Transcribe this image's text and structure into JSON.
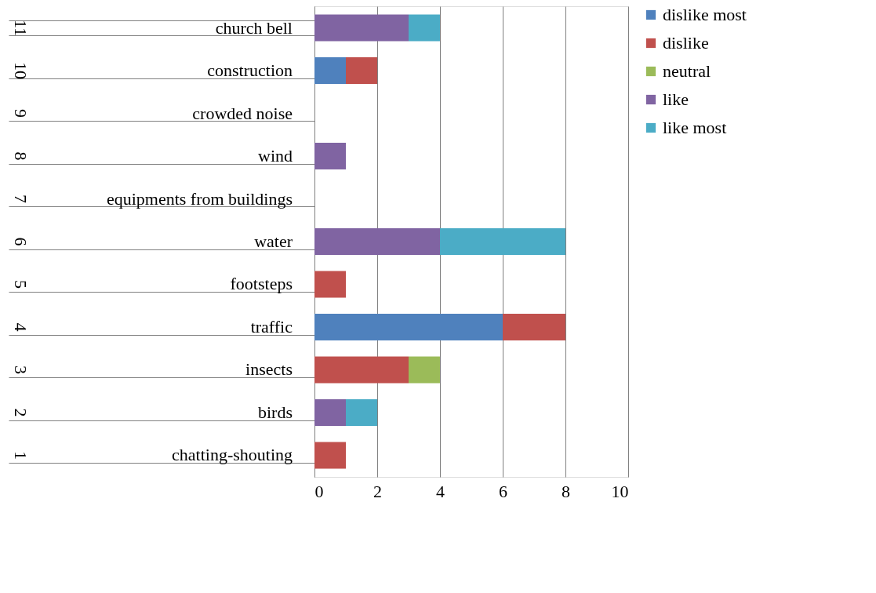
{
  "chart_data": {
    "type": "bar",
    "orientation": "horizontal",
    "stacked": true,
    "categories": [
      "church bell",
      "construction",
      "crowded noise",
      "wind",
      "equipments from buildings",
      "water",
      "footsteps",
      "traffic",
      "insects",
      "birds",
      "chatting-shouting"
    ],
    "y2_categories": [
      "11",
      "10",
      "9",
      "8",
      "7",
      "6",
      "5",
      "4",
      "3",
      "2",
      "1"
    ],
    "series": [
      {
        "name": "dislike most",
        "color": "#4f81bd",
        "values": [
          0,
          1,
          0,
          0,
          0,
          0,
          0,
          6,
          0,
          0,
          0
        ]
      },
      {
        "name": "dislike",
        "color": "#c0504d",
        "values": [
          0,
          1,
          0,
          0,
          0,
          0,
          1,
          2,
          3,
          0,
          1
        ]
      },
      {
        "name": "neutral",
        "color": "#9bbb59",
        "values": [
          0,
          0,
          0,
          0,
          0,
          0,
          0,
          0,
          1,
          0,
          0
        ]
      },
      {
        "name": "like",
        "color": "#8064a2",
        "values": [
          3,
          0,
          0,
          1,
          0,
          4,
          0,
          0,
          0,
          1,
          0
        ]
      },
      {
        "name": "like most",
        "color": "#4bacc6",
        "values": [
          1,
          0,
          0,
          0,
          0,
          4,
          0,
          0,
          0,
          1,
          0
        ]
      }
    ],
    "xlim": [
      0,
      10
    ],
    "xticks": [
      0,
      2,
      4,
      6,
      8,
      10
    ],
    "grid": "x",
    "legend": "right"
  }
}
